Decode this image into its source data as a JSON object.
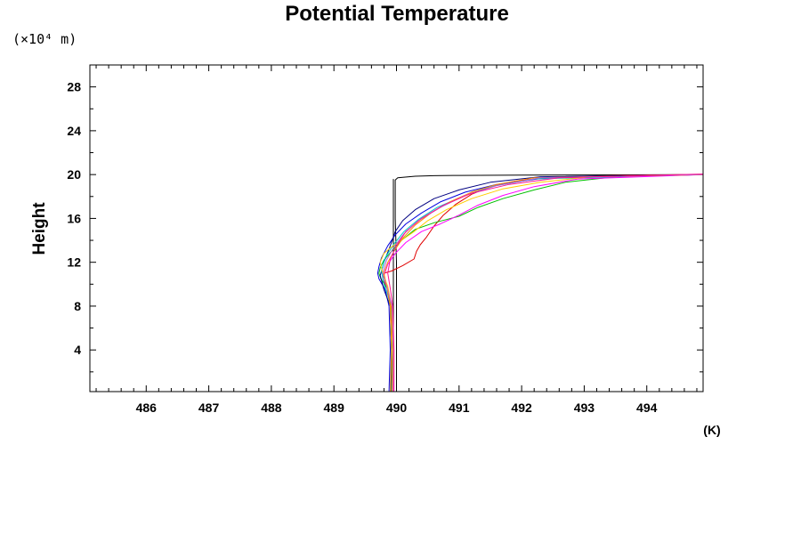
{
  "chart_data": {
    "type": "line",
    "title": "Potential Temperature",
    "ylabel": "Height",
    "y_unit_label": "(×10⁴ m)",
    "x_unit_label": "(K)",
    "xlim": [
      485.1,
      494.9
    ],
    "ylim": [
      0.2,
      30.0
    ],
    "x_ticks": [
      486,
      487,
      488,
      489,
      490,
      491,
      492,
      493,
      494
    ],
    "x_tick_labels": [
      "486",
      "487",
      "488",
      "489",
      "490",
      "491",
      "492",
      "493",
      "494"
    ],
    "y_ticks": [
      4,
      8,
      12,
      16,
      20,
      24,
      28
    ],
    "y_tick_labels": [
      "4",
      "8",
      "12",
      "16",
      "20",
      "24",
      "28"
    ],
    "grid": false,
    "legend": "none",
    "series": [
      {
        "color": "#000000",
        "x": [
          490.0,
          490.0,
          490.0,
          490.0,
          489.98,
          489.98,
          490.02,
          490.1,
          490.3,
          490.6,
          491.0,
          492.0,
          493.5,
          494.9
        ],
        "y": [
          0.2,
          4.0,
          8.0,
          12.0,
          16.0,
          19.5,
          19.7,
          19.75,
          19.85,
          19.9,
          19.92,
          19.95,
          19.97,
          20.0
        ]
      },
      {
        "color": "#000000",
        "x": [
          489.95,
          489.95,
          489.95,
          489.95,
          489.95,
          489.95
        ],
        "y": [
          0.2,
          4.0,
          8.0,
          12.0,
          16.0,
          19.6
        ]
      },
      {
        "color": "#e00000",
        "x": [
          489.93,
          489.94,
          489.92,
          489.9,
          489.86,
          489.78,
          489.8,
          489.92,
          490.1,
          490.28,
          490.32,
          490.38,
          490.48,
          490.6,
          490.75,
          490.95,
          491.2,
          491.5,
          491.9,
          492.4,
          493.0,
          493.8,
          494.9
        ],
        "y": [
          0.2,
          4.0,
          7.0,
          8.5,
          9.5,
          10.5,
          11.0,
          11.2,
          11.7,
          12.3,
          13.0,
          13.6,
          14.3,
          15.3,
          16.3,
          17.3,
          18.2,
          18.9,
          19.4,
          19.7,
          19.85,
          19.95,
          20.0
        ]
      },
      {
        "color": "#00c000",
        "x": [
          489.92,
          489.92,
          489.9,
          489.86,
          489.75,
          489.72,
          489.74,
          489.8,
          489.92,
          490.08,
          490.3,
          490.6,
          491.0,
          491.3,
          491.7,
          492.2,
          492.7,
          493.5,
          494.9
        ],
        "y": [
          0.2,
          4.0,
          8.0,
          9.5,
          10.5,
          11.0,
          11.5,
          12.2,
          13.0,
          14.0,
          15.0,
          15.6,
          16.2,
          17.0,
          17.8,
          18.6,
          19.3,
          19.8,
          20.0
        ]
      },
      {
        "color": "#0000e0",
        "x": [
          489.88,
          489.9,
          489.88,
          489.82,
          489.72,
          489.7,
          489.72,
          489.76,
          489.86,
          489.98,
          490.15,
          490.4,
          490.7,
          491.1,
          491.6,
          492.4,
          494.9
        ],
        "y": [
          0.2,
          4.0,
          8.0,
          9.5,
          10.5,
          11.0,
          11.6,
          12.4,
          13.5,
          14.5,
          15.5,
          16.5,
          17.5,
          18.4,
          19.1,
          19.7,
          20.0
        ]
      },
      {
        "color": "#000080",
        "x": [
          489.92,
          489.92,
          489.9,
          489.8,
          489.74,
          489.8,
          489.9,
          489.98,
          490.1,
          490.3,
          490.6,
          491.0,
          491.5,
          492.3,
          494.9
        ],
        "y": [
          0.2,
          4.0,
          8.0,
          9.5,
          10.8,
          12.0,
          13.5,
          14.8,
          15.8,
          16.8,
          17.8,
          18.6,
          19.3,
          19.8,
          20.0
        ]
      },
      {
        "color": "#00cccc",
        "x": [
          489.9,
          489.92,
          489.9,
          489.86,
          489.8,
          489.76,
          489.82,
          489.95,
          490.12,
          490.35,
          490.65,
          491.05,
          491.5,
          492.2,
          494.9
        ],
        "y": [
          0.2,
          4.0,
          8.0,
          9.0,
          10.0,
          11.2,
          12.4,
          13.6,
          14.8,
          15.9,
          17.0,
          18.0,
          18.9,
          19.6,
          20.0
        ]
      },
      {
        "color": "#ff00ff",
        "x": [
          489.94,
          489.95,
          489.92,
          489.86,
          489.8,
          489.86,
          489.98,
          490.15,
          490.4,
          490.7,
          491.0,
          491.3,
          491.7,
          492.2,
          492.9,
          494.9
        ],
        "y": [
          0.2,
          4.0,
          8.0,
          9.5,
          10.8,
          11.8,
          12.8,
          13.8,
          14.8,
          15.5,
          16.3,
          17.2,
          18.1,
          18.9,
          19.6,
          20.0
        ]
      },
      {
        "color": "#ffcc00",
        "x": [
          489.93,
          489.94,
          489.92,
          489.86,
          489.78,
          489.74,
          489.8,
          489.92,
          490.08,
          490.28,
          490.5,
          490.8,
          491.2,
          491.7,
          492.3,
          493.1,
          494.9
        ],
        "y": [
          0.2,
          4.0,
          8.0,
          9.8,
          11.0,
          12.0,
          12.8,
          13.4,
          14.0,
          14.8,
          15.8,
          16.8,
          17.8,
          18.7,
          19.3,
          19.8,
          20.0
        ]
      },
      {
        "color": "#ff8c00",
        "x": [
          489.9,
          489.92,
          489.9,
          489.84,
          489.8,
          489.86,
          489.96,
          490.1,
          490.3,
          490.55,
          490.85,
          491.2,
          491.6,
          492.2,
          494.9
        ],
        "y": [
          0.2,
          4.0,
          8.0,
          9.8,
          11.0,
          12.0,
          13.0,
          14.2,
          15.4,
          16.5,
          17.5,
          18.4,
          19.1,
          19.7,
          20.0
        ]
      },
      {
        "color": "#b060d0",
        "x": [
          489.95,
          489.95,
          489.93,
          489.84,
          489.78,
          489.84,
          489.96,
          490.12,
          490.35,
          490.7,
          491.1,
          491.6,
          492.3,
          494.9
        ],
        "y": [
          0.2,
          4.0,
          8.0,
          9.8,
          11.0,
          12.2,
          13.4,
          14.6,
          15.8,
          17.0,
          18.1,
          19.0,
          19.7,
          20.0
        ]
      },
      {
        "color": "#ff1493",
        "x": [
          489.96,
          489.96,
          489.94,
          489.9,
          489.86,
          489.9,
          490.0,
          490.15,
          490.4,
          490.75,
          491.2,
          491.8,
          492.6,
          494.9
        ],
        "y": [
          0.2,
          4.0,
          8.0,
          9.6,
          11.0,
          12.3,
          13.5,
          14.8,
          16.0,
          17.2,
          18.3,
          19.1,
          19.7,
          20.05
        ]
      }
    ]
  }
}
